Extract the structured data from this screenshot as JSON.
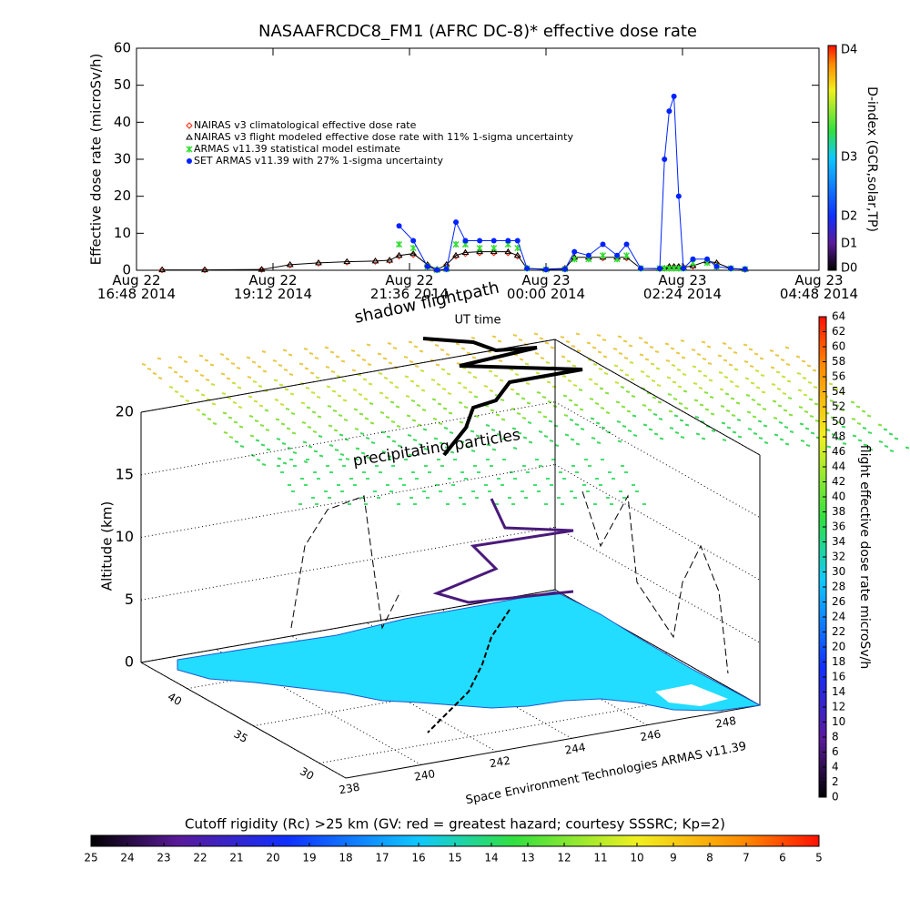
{
  "chart_data": [
    {
      "type": "line",
      "title": "NASAAFRCDC8_FM1 (AFRC DC-8)* effective dose rate",
      "xlabel": "UT time",
      "ylabel": "Effective dose rate (microSv/h)",
      "x": [
        "2014-08-22T17:15",
        "2014-08-22T18:00",
        "2014-08-22T19:00",
        "2014-08-22T19:30",
        "2014-08-22T20:00",
        "2014-08-22T20:30",
        "2014-08-22T21:00",
        "2014-08-22T21:15",
        "2014-08-22T21:25",
        "2014-08-22T21:40",
        "2014-08-22T21:55",
        "2014-08-22T22:05",
        "2014-08-22T22:15",
        "2014-08-22T22:25",
        "2014-08-22T22:35",
        "2014-08-22T22:50",
        "2014-08-22T23:05",
        "2014-08-22T23:20",
        "2014-08-22T23:30",
        "2014-08-22T23:40",
        "2014-08-23T00:00",
        "2014-08-23T00:20",
        "2014-08-23T00:30",
        "2014-08-23T00:45",
        "2014-08-23T01:00",
        "2014-08-23T01:15",
        "2014-08-23T01:25",
        "2014-08-23T01:40",
        "2014-08-23T02:00",
        "2014-08-23T02:05",
        "2014-08-23T02:10",
        "2014-08-23T02:15",
        "2014-08-23T02:20",
        "2014-08-23T02:25",
        "2014-08-23T02:35",
        "2014-08-23T02:50",
        "2014-08-23T03:00",
        "2014-08-23T03:15",
        "2014-08-23T03:30"
      ],
      "xlim": [
        "2014-08-22T16:48",
        "2014-08-23T04:48"
      ],
      "xticks": [
        {
          "value": "2014-08-22T16:48",
          "label": "Aug 22\n16:48 2014"
        },
        {
          "value": "2014-08-22T19:12",
          "label": "Aug 22\n19:12 2014"
        },
        {
          "value": "2014-08-22T21:36",
          "label": "Aug 22\n21:36 2014"
        },
        {
          "value": "2014-08-23T00:00",
          "label": "Aug 23\n00:00 2014"
        },
        {
          "value": "2014-08-23T02:24",
          "label": "Aug 23\n02:24 2014"
        },
        {
          "value": "2014-08-23T04:48",
          "label": "Aug 23\n04:48 2014"
        }
      ],
      "ylim": [
        0,
        60
      ],
      "yticks": [
        0,
        10,
        20,
        30,
        40,
        50,
        60
      ],
      "legend": "upper-left",
      "series": [
        {
          "name": "NAIRAS v3 climatological effective dose rate",
          "color": "#ff2000",
          "marker": "diamond",
          "line": false,
          "values": [
            0.1,
            0.1,
            0.2,
            1.4,
            1.9,
            2.2,
            2.4,
            2.6,
            3.8,
            4.2,
            1.4,
            0.2,
            1.4,
            3.8,
            4.5,
            4.7,
            4.7,
            4.7,
            3.8,
            0.5,
            0.3,
            0.5,
            3.3,
            3.3,
            3.3,
            3.3,
            3.3,
            0.5,
            0.4,
            0.5,
            0.9,
            0.9,
            0.9,
            0.8,
            1.1,
            2.3,
            1.9,
            0.5,
            0.2
          ]
        },
        {
          "name": "NAIRAS v3 flight modeled effective dose rate with 11% 1-sigma uncertainty",
          "color": "#000000",
          "marker": "triangle",
          "line": true,
          "values": [
            0.1,
            0.1,
            0.2,
            1.5,
            2,
            2.3,
            2.5,
            2.7,
            4,
            4.5,
            1.5,
            0.2,
            1.5,
            4,
            4.8,
            5,
            5,
            5,
            4,
            0.5,
            0.3,
            0.5,
            3.5,
            3.5,
            3.5,
            3.5,
            3.5,
            0.5,
            0.4,
            0.5,
            1,
            1,
            1,
            0.8,
            1.2,
            2.5,
            2,
            0.5,
            0.2
          ]
        },
        {
          "name": "ARMAS v11.39 statistical model estimate",
          "color": "#33dd33",
          "marker": "asterisk",
          "line": false,
          "values": [
            null,
            null,
            null,
            null,
            null,
            null,
            null,
            null,
            7,
            6,
            1,
            0.1,
            0.3,
            7,
            7,
            6,
            6,
            7,
            6,
            0.5,
            0.2,
            0.3,
            3,
            3,
            4,
            3,
            4,
            0.5,
            0.5,
            0.5,
            0.5,
            0.5,
            0.5,
            0.5,
            2,
            2,
            1,
            0.5,
            0.3
          ]
        },
        {
          "name": "SET ARMAS v11.39 with 27% 1-sigma uncertainty",
          "color": "#0022ff",
          "marker": "circle",
          "line": true,
          "values": [
            null,
            null,
            null,
            null,
            null,
            null,
            null,
            null,
            12,
            8,
            1,
            0.1,
            0.3,
            13,
            8,
            8,
            8,
            8,
            8,
            0.5,
            0.2,
            0.3,
            5,
            4,
            7,
            4,
            7,
            0.5,
            0.5,
            30,
            43,
            47,
            20,
            0.5,
            3,
            3,
            1,
            0.5,
            0.3
          ]
        }
      ]
    },
    {
      "type": "colorbar",
      "orientation": "vertical",
      "label": "D-index (GCR,solar,TP)",
      "ticks": [
        "D0",
        "D1",
        "D2",
        "D3",
        "D4"
      ]
    },
    {
      "type": "scatter3d",
      "annotations": [
        "shadow flightpath",
        "precipitating particles"
      ],
      "zlabel": "Altitude (km)",
      "zlim": [
        0,
        20
      ],
      "zticks": [
        0,
        5,
        10,
        15,
        20
      ],
      "latlim": [
        28,
        43.5
      ],
      "latticks": [
        30,
        35,
        40
      ],
      "lonlim": [
        238,
        249
      ],
      "lonticks": [
        238,
        240,
        242,
        244,
        246,
        248
      ],
      "caption": "Space Environment Technologies ARMAS v11.39"
    },
    {
      "type": "colorbar",
      "orientation": "vertical",
      "label": "flight effective dose rate microSv/h",
      "ylim": [
        0,
        64
      ],
      "yticks": [
        0,
        2,
        4,
        6,
        8,
        10,
        12,
        14,
        16,
        18,
        20,
        22,
        24,
        26,
        28,
        30,
        32,
        34,
        36,
        38,
        40,
        42,
        44,
        46,
        48,
        50,
        52,
        54,
        56,
        58,
        60,
        62,
        64
      ]
    },
    {
      "type": "colorbar",
      "orientation": "horizontal",
      "title": "Cutoff rigidity (Rc) >25 km (GV: red = greatest hazard; courtesy SSSRC; Kp=2)",
      "xlim": [
        25,
        5
      ],
      "xticks": [
        25,
        24,
        23,
        22,
        21,
        20,
        19,
        18,
        17,
        16,
        15,
        14,
        13,
        12,
        11,
        10,
        9,
        8,
        7,
        6,
        5
      ]
    }
  ]
}
